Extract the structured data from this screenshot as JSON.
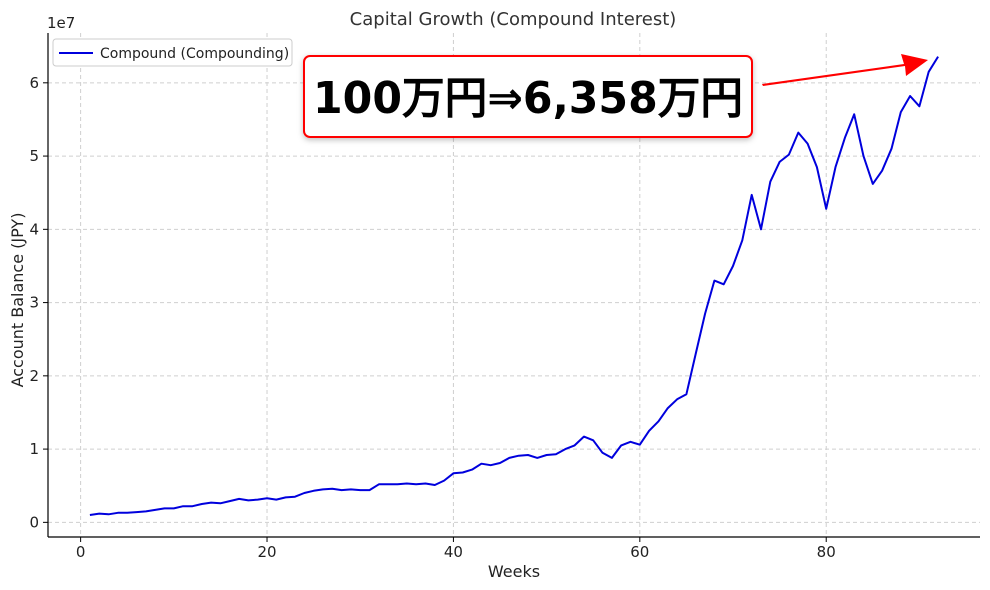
{
  "chart_data": {
    "type": "line",
    "title": "Capital Growth (Compound Interest)",
    "xlabel": "Weeks",
    "ylabel": "Account Balance (JPY)",
    "y_scale_label": "1e7",
    "xlim": [
      -3.5,
      96.5
    ],
    "ylim": [
      -0.2,
      6.68
    ],
    "y_units": "1e7 JPY",
    "x_ticks": [
      0,
      20,
      40,
      60,
      80
    ],
    "x_tick_labels": [
      "0",
      "20",
      "40",
      "60",
      "80"
    ],
    "y_ticks": [
      0,
      1,
      2,
      3,
      4,
      5,
      6
    ],
    "y_tick_labels": [
      "0",
      "1",
      "2",
      "3",
      "4",
      "5",
      "6"
    ],
    "grid": true,
    "legend_position": "top-left",
    "series": [
      {
        "name": "Compound (Compounding)",
        "color": "#0000dd",
        "x": [
          1,
          2,
          3,
          4,
          5,
          6,
          7,
          8,
          9,
          10,
          11,
          12,
          13,
          14,
          15,
          16,
          17,
          18,
          19,
          20,
          21,
          22,
          23,
          24,
          25,
          26,
          27,
          28,
          29,
          30,
          31,
          32,
          33,
          34,
          35,
          36,
          37,
          38,
          39,
          40,
          41,
          42,
          43,
          44,
          45,
          46,
          47,
          48,
          49,
          50,
          51,
          52,
          53,
          54,
          55,
          56,
          57,
          58,
          59,
          60,
          61,
          62,
          63,
          64,
          65,
          66,
          67,
          68,
          69,
          70,
          71,
          72,
          73,
          74,
          75,
          76,
          77,
          78,
          79,
          80,
          81,
          82,
          83,
          84,
          85,
          86,
          87,
          88,
          89,
          90,
          91,
          92
        ],
        "values": [
          0.1,
          0.12,
          0.11,
          0.13,
          0.13,
          0.14,
          0.15,
          0.17,
          0.19,
          0.19,
          0.22,
          0.22,
          0.25,
          0.27,
          0.26,
          0.29,
          0.32,
          0.3,
          0.31,
          0.33,
          0.31,
          0.34,
          0.35,
          0.4,
          0.43,
          0.45,
          0.46,
          0.44,
          0.45,
          0.44,
          0.44,
          0.52,
          0.52,
          0.52,
          0.53,
          0.52,
          0.53,
          0.51,
          0.57,
          0.67,
          0.68,
          0.72,
          0.8,
          0.78,
          0.81,
          0.88,
          0.91,
          0.92,
          0.88,
          0.92,
          0.93,
          1.0,
          1.05,
          1.17,
          1.12,
          0.95,
          0.88,
          1.05,
          1.1,
          1.06,
          1.25,
          1.38,
          1.56,
          1.68,
          1.75,
          2.3,
          2.85,
          3.3,
          3.25,
          3.5,
          3.85,
          4.47,
          4.0,
          4.65,
          4.92,
          5.02,
          5.32,
          5.17,
          4.85,
          4.28,
          4.85,
          5.25,
          5.57,
          5.0,
          4.62,
          4.8,
          5.1,
          5.6,
          5.82,
          5.68,
          6.15,
          6.358
        ]
      }
    ],
    "annotation": {
      "text": "100万円⇒6,358万円",
      "border_color": "#ff0000",
      "arrow_color": "#ff0000"
    }
  }
}
